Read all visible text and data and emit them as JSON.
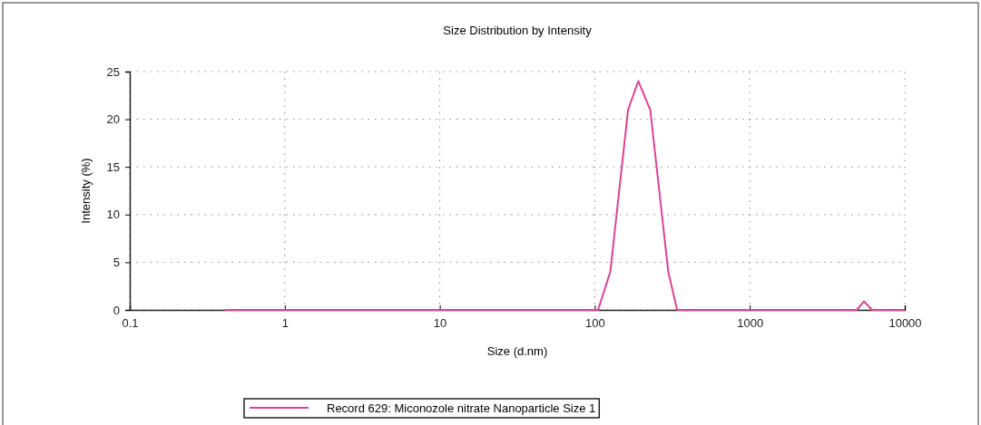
{
  "chart_data": {
    "type": "line",
    "title": "Size Distribution by Intensity",
    "xlabel": "Size (d.nm)",
    "ylabel": "Intensity (%)",
    "log": "x",
    "xlim": [
      0.1,
      10000
    ],
    "xticks": [
      0.1,
      1,
      10,
      100,
      1000,
      10000
    ],
    "ylim": [
      0,
      25
    ],
    "yticks": [
      0,
      5,
      10,
      15,
      20,
      25
    ],
    "grid": true,
    "legend": "bottom",
    "line_style": "solid",
    "series": [
      {
        "name": "Record 629: Miconozole nitrate Nanoparticle Size 1",
        "color": "#e0409a",
        "x": [
          0.41,
          105,
          126,
          164,
          191,
          228,
          298,
          340,
          4900,
          5450,
          6150,
          10000
        ],
        "values": [
          0,
          0,
          4,
          21,
          24,
          21,
          4,
          0,
          0,
          0.9,
          0,
          0
        ]
      }
    ]
  }
}
